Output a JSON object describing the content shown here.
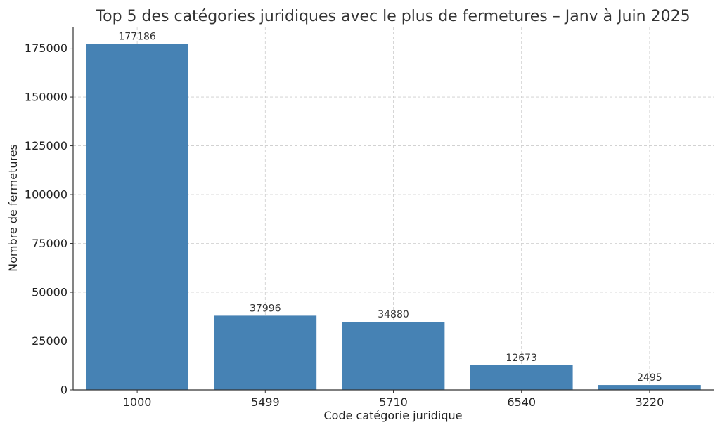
{
  "chart_data": {
    "type": "bar",
    "title": "Top 5 des catégories juridiques avec le plus de fermetures – Janv à Juin 2025",
    "xlabel": "Code catégorie juridique",
    "ylabel": "Nombre de fermetures",
    "categories": [
      "1000",
      "5499",
      "5710",
      "6540",
      "3220"
    ],
    "values": [
      177186,
      37996,
      34880,
      12673,
      2495
    ],
    "data_labels": [
      "177186",
      "37996",
      "34880",
      "12673",
      "2495"
    ],
    "yticks": [
      0,
      25000,
      50000,
      75000,
      100000,
      125000,
      150000,
      175000
    ],
    "ytick_labels": [
      "0",
      "25000",
      "50000",
      "75000",
      "100000",
      "125000",
      "150000",
      "175000"
    ],
    "ylim": [
      0,
      186000
    ],
    "grid": true,
    "legend": "none",
    "colors": {
      "bar": "#4682b4",
      "grid": "#cccccc",
      "axis": "#333333",
      "text": "#333333"
    }
  }
}
